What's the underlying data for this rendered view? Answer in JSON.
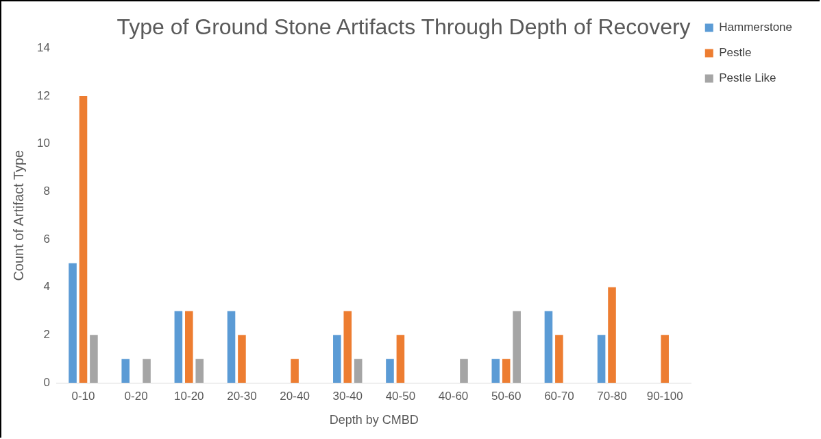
{
  "chart_data": {
    "type": "bar",
    "title": "Type of Ground Stone Artifacts Through Depth of Recovery",
    "xlabel": "Depth by CMBD",
    "ylabel": "Count of Artifact Type",
    "categories": [
      "0-10",
      "0-20",
      "10-20",
      "20-30",
      "20-40",
      "30-40",
      "40-50",
      "40-60",
      "50-60",
      "60-70",
      "70-80",
      "90-100"
    ],
    "series": [
      {
        "name": "Hammerstone",
        "color": "#5b9bd5",
        "values": [
          5,
          1,
          3,
          3,
          null,
          2,
          1,
          null,
          1,
          3,
          2,
          null
        ]
      },
      {
        "name": "Pestle",
        "color": "#ed7d31",
        "values": [
          12,
          null,
          3,
          2,
          1,
          3,
          2,
          null,
          1,
          2,
          4,
          2
        ]
      },
      {
        "name": "Pestle Like",
        "color": "#a5a5a5",
        "values": [
          2,
          1,
          1,
          null,
          null,
          1,
          null,
          1,
          3,
          null,
          null,
          null
        ]
      }
    ],
    "ylim": [
      0,
      14
    ],
    "yticks": [
      0,
      2,
      4,
      6,
      8,
      10,
      12,
      14
    ],
    "grid": false,
    "legend": "top right"
  }
}
